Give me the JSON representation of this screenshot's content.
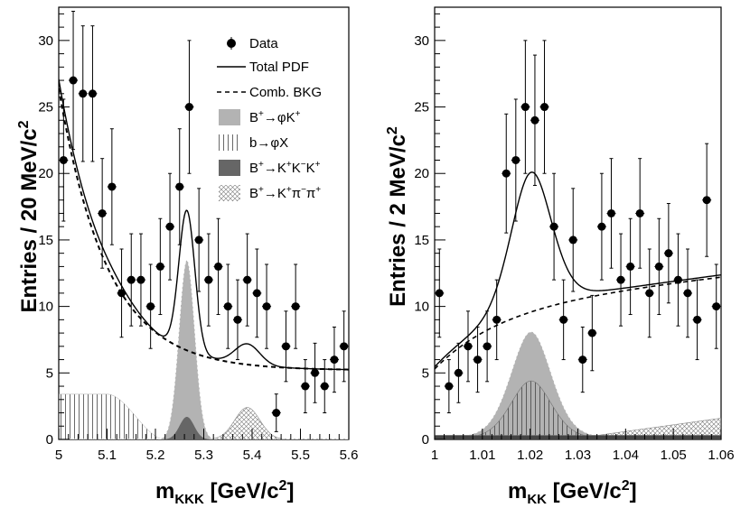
{
  "chart_data": [
    {
      "type": "histogram-fit",
      "panel": "left",
      "ylabel_main": "Entries / 20 MeV/c",
      "ylabel_sup": "2",
      "xlabel_main": "m",
      "xlabel_sub": "KKK",
      "xlabel_unit": " [GeV/c",
      "xlabel_sup": "2",
      "xlabel_close": "]",
      "xlim": [
        5.0,
        5.6
      ],
      "ylim": [
        0,
        32.5
      ],
      "xticks": [
        5.0,
        5.1,
        5.2,
        5.3,
        5.4,
        5.5,
        5.6
      ],
      "xtick_labels": [
        "5",
        "5.1",
        "5.2",
        "5.3",
        "5.4",
        "5.5",
        "5.6"
      ],
      "yticks": [
        0,
        5,
        10,
        15,
        20,
        25,
        30
      ],
      "ytick_labels": [
        "0",
        "5",
        "10",
        "15",
        "20",
        "25",
        "30"
      ],
      "data": {
        "x": [
          5.01,
          5.03,
          5.05,
          5.07,
          5.09,
          5.11,
          5.13,
          5.15,
          5.17,
          5.19,
          5.21,
          5.23,
          5.25,
          5.27,
          5.29,
          5.31,
          5.33,
          5.35,
          5.37,
          5.39,
          5.41,
          5.43,
          5.45,
          5.47,
          5.49,
          5.51,
          5.53,
          5.55,
          5.57,
          5.59
        ],
        "y": [
          21,
          27,
          26,
          26,
          17,
          19,
          11,
          12,
          12,
          10,
          13,
          16,
          19,
          25,
          15,
          12,
          13,
          10,
          9,
          12,
          11,
          10,
          2,
          7,
          10,
          4,
          5,
          4,
          6,
          7
        ]
      },
      "legend": {
        "data": "Data",
        "total": "Total PDF",
        "comb": "Comb. BKG",
        "sig_pre": "B",
        "sig_sup": "+",
        "sig_post": "→φK",
        "sig_sup2": "+",
        "bphix": "b→φX",
        "kkk_pre": "B",
        "kkk_sup": "+",
        "kkk_mid": "→K",
        "kkk_sup2": "+",
        "kkk_k2": "K",
        "kkk_sup3": "−",
        "kkk_k3": "K",
        "kkk_sup4": "+",
        "kpp_pre": "B",
        "kpp_sup": "+",
        "kpp_mid": "→K",
        "kpp_sup2": "+",
        "kpp_pi1": "π",
        "kpp_sup3": "−",
        "kpp_pi2": "π",
        "kpp_sup4": "+"
      },
      "colors": {
        "signal": "#b3b3b3",
        "kkk": "#666666",
        "line": "#000000"
      },
      "model": {
        "comb_bkg": {
          "amp": 26.4,
          "decay": 10.0,
          "const": 5.2
        },
        "signal": {
          "mean": 5.265,
          "sigma": 0.0165,
          "amp": 13.5
        },
        "bphix": {
          "amp": 3.4,
          "fall_start": 5.1,
          "end": 5.22
        },
        "kkk": {
          "mean": 5.265,
          "sigma": 0.015,
          "amp": 1.7
        },
        "kpipi": {
          "mean": 5.39,
          "sigma": 0.026,
          "amp": 2.4
        }
      }
    },
    {
      "type": "histogram-fit",
      "panel": "right",
      "ylabel_main": "Entries / 2 MeV/c",
      "ylabel_sup": "2",
      "xlabel_main": "m",
      "xlabel_sub": "KK",
      "xlabel_unit": " [GeV/c",
      "xlabel_sup": "2",
      "xlabel_close": "]",
      "xlim": [
        1.0,
        1.06
      ],
      "ylim": [
        0,
        32.5
      ],
      "xticks": [
        1.0,
        1.01,
        1.02,
        1.03,
        1.04,
        1.05,
        1.06
      ],
      "xtick_labels": [
        "1",
        "1.01",
        "1.02",
        "1.03",
        "1.04",
        "1.05",
        "1.06"
      ],
      "yticks": [
        0,
        5,
        10,
        15,
        20,
        25,
        30
      ],
      "ytick_labels": [
        "0",
        "5",
        "10",
        "15",
        "20",
        "25",
        "30"
      ],
      "data": {
        "x": [
          1.001,
          1.003,
          1.005,
          1.007,
          1.009,
          1.011,
          1.013,
          1.015,
          1.017,
          1.019,
          1.021,
          1.023,
          1.025,
          1.027,
          1.029,
          1.031,
          1.033,
          1.035,
          1.037,
          1.039,
          1.041,
          1.043,
          1.045,
          1.047,
          1.049,
          1.051,
          1.053,
          1.055,
          1.057,
          1.059
        ],
        "y": [
          11,
          4,
          5,
          7,
          6,
          7,
          9,
          20,
          21,
          25,
          24,
          25,
          16,
          9,
          15,
          6,
          8,
          16,
          17,
          12,
          13,
          17,
          11,
          13,
          14,
          12,
          11,
          9,
          18,
          10
        ]
      },
      "colors": {
        "signal": "#b3b3b3",
        "line": "#000000"
      },
      "model": {
        "phi": {
          "mean": 1.0202,
          "width": 0.0043,
          "amp_total": 10.5,
          "amp_sig": 8.1,
          "amp_bphix": 4.4
        },
        "comb_bkg": {
          "y_start": 5.3,
          "y_end": 12.2,
          "rise": 0.014
        },
        "kpipi_lin": {
          "y_start": 0.0,
          "y_end": 1.3
        },
        "floor": 0.3
      }
    }
  ]
}
